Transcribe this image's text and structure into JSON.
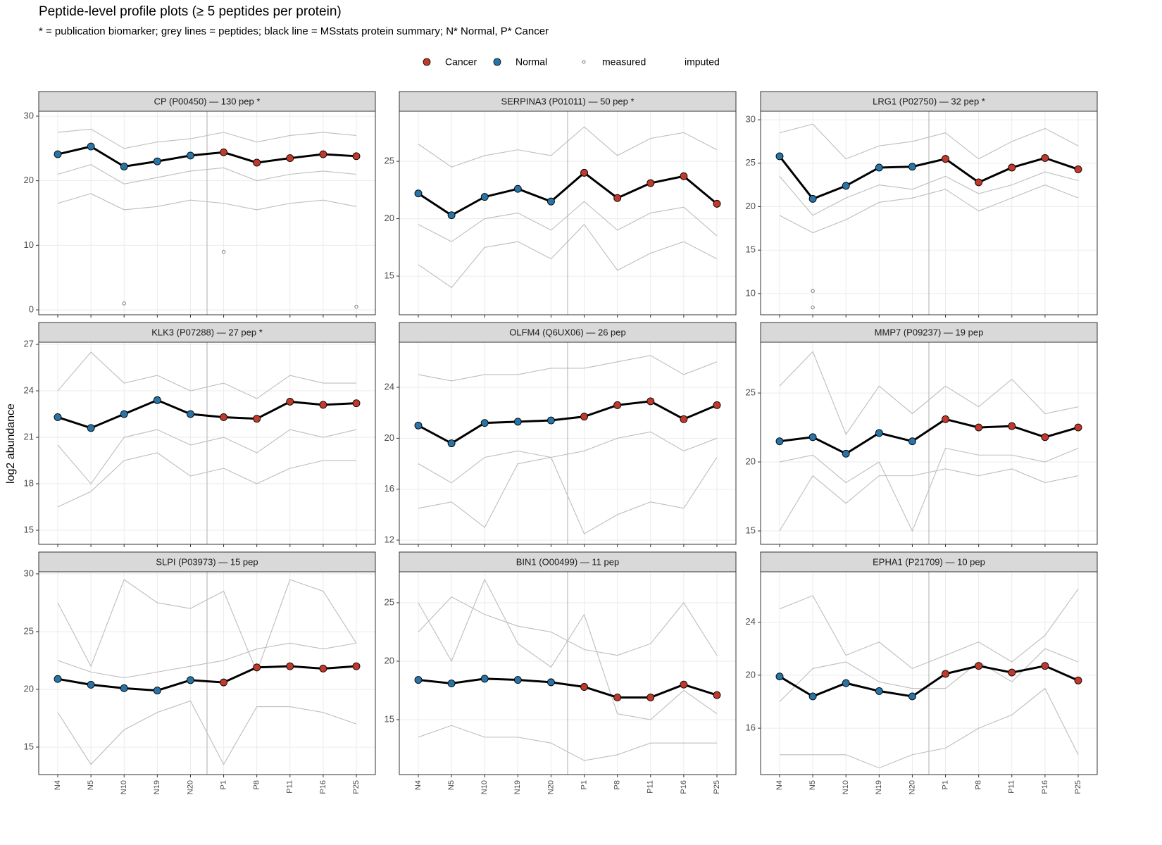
{
  "title": "Peptide-level profile plots (≥ 5 peptides per protein)",
  "subtitle": "* = publication biomarker; grey lines = peptides; black line = MSstats protein summary; N* Normal, P* Cancer",
  "y_label": "log2 abundance",
  "legend": [
    {
      "name": "Cancer",
      "color": "#c0392b"
    },
    {
      "name": "Normal",
      "color": "#2874a6"
    },
    {
      "name": "measured"
    },
    {
      "name": "imputed"
    }
  ],
  "categories": [
    "N4",
    "N5",
    "N10",
    "N19",
    "N20",
    "P1",
    "P8",
    "P11",
    "P16",
    "P25"
  ],
  "groups": [
    "Normal",
    "Normal",
    "Normal",
    "Normal",
    "Normal",
    "Cancer",
    "Cancer",
    "Cancer",
    "Cancer",
    "Cancer"
  ],
  "chart_data": [
    {
      "type": "line",
      "title": "CP (P00450) — 130 pep *",
      "color": "#000000",
      "peptide_color": "#bdbdbd",
      "grid": true,
      "values": [
        24.1,
        25.3,
        22.2,
        23.0,
        23.9,
        24.4,
        22.8,
        23.5,
        24.1,
        23.8
      ],
      "peptides": [
        [
          27.5,
          28.0,
          25.0,
          26.0,
          26.5,
          27.5,
          26.0,
          27.0,
          27.5,
          27.0
        ],
        [
          16.5,
          18.0,
          15.5,
          16.0,
          17.0,
          16.5,
          15.5,
          16.5,
          17.0,
          16.0
        ],
        [
          21.0,
          22.5,
          19.5,
          20.5,
          21.5,
          22.0,
          20.0,
          21.0,
          21.5,
          21.0
        ]
      ],
      "measured": {
        "x": [
          "N10",
          "P1",
          "P25"
        ],
        "values": [
          1.0,
          9.0,
          0.5
        ]
      },
      "ylim": [
        -0.76,
        30.76
      ],
      "yticks": [
        0,
        10,
        20,
        30
      ]
    },
    {
      "type": "line",
      "title": "SERPINA3 (P01011) — 50 pep *",
      "color": "#000000",
      "peptide_color": "#bdbdbd",
      "grid": true,
      "values": [
        22.2,
        20.3,
        21.9,
        22.6,
        21.5,
        24.0,
        21.8,
        23.1,
        23.7,
        21.3
      ],
      "peptides": [
        [
          26.5,
          24.5,
          25.5,
          26.0,
          25.5,
          28.0,
          25.5,
          27.0,
          27.5,
          26.0
        ],
        [
          16.0,
          14.0,
          17.5,
          18.0,
          16.5,
          19.5,
          15.5,
          17.0,
          18.0,
          16.5
        ],
        [
          19.5,
          18.0,
          20.0,
          20.5,
          19.0,
          21.5,
          19.0,
          20.5,
          21.0,
          18.5
        ]
      ],
      "ylim": [
        11.63,
        29.36
      ],
      "yticks": [
        15,
        20,
        25
      ]
    },
    {
      "type": "line",
      "title": "LRG1 (P02750) — 32 pep *",
      "color": "#000000",
      "peptide_color": "#bdbdbd",
      "grid": true,
      "values": [
        25.8,
        20.9,
        22.4,
        24.5,
        24.6,
        25.5,
        22.8,
        24.5,
        25.6,
        24.3
      ],
      "peptides": [
        [
          28.5,
          29.5,
          25.5,
          27.0,
          27.5,
          28.5,
          25.5,
          27.5,
          29.0,
          27.0
        ],
        [
          19.0,
          17.0,
          18.5,
          20.5,
          21.0,
          22.0,
          19.5,
          21.0,
          22.5,
          21.0
        ],
        [
          23.5,
          19.0,
          21.0,
          22.5,
          22.0,
          23.5,
          21.5,
          22.5,
          24.0,
          23.0
        ]
      ],
      "measured": {
        "x": [
          "N5",
          "N5"
        ],
        "values": [
          10.3,
          8.4
        ]
      },
      "ylim": [
        7.56,
        30.98
      ],
      "yticks": [
        10,
        15,
        20,
        25,
        30
      ]
    },
    {
      "type": "line",
      "title": "KLK3 (P07288) — 27 pep *",
      "color": "#000000",
      "peptide_color": "#bdbdbd",
      "grid": true,
      "values": [
        22.3,
        21.6,
        22.5,
        23.4,
        22.5,
        22.3,
        22.2,
        23.3,
        23.1,
        23.2
      ],
      "peptides": [
        [
          24.0,
          26.5,
          24.5,
          25.0,
          24.0,
          24.5,
          23.5,
          25.0,
          24.5,
          24.5
        ],
        [
          16.5,
          17.5,
          19.5,
          20.0,
          18.5,
          19.0,
          18.0,
          19.0,
          19.5,
          19.5
        ],
        [
          20.5,
          18.0,
          21.0,
          21.5,
          20.5,
          21.0,
          20.0,
          21.5,
          21.0,
          21.5
        ]
      ],
      "ylim": [
        14.09,
        27.14
      ],
      "yticks": [
        15,
        18,
        21,
        24,
        27
      ]
    },
    {
      "type": "line",
      "title": "OLFM4 (Q6UX06) — 26 pep",
      "color": "#000000",
      "peptide_color": "#bdbdbd",
      "grid": true,
      "values": [
        21.0,
        19.6,
        21.2,
        21.3,
        21.4,
        21.7,
        22.6,
        22.9,
        21.5,
        22.6
      ],
      "peptides": [
        [
          25.0,
          24.5,
          25.0,
          25.0,
          25.5,
          25.5,
          26.0,
          26.5,
          25.0,
          26.0
        ],
        [
          14.5,
          15.0,
          13.0,
          18.0,
          18.5,
          12.5,
          14.0,
          15.0,
          14.5,
          18.5
        ],
        [
          18.0,
          16.5,
          18.5,
          19.0,
          18.5,
          19.0,
          20.0,
          20.5,
          19.0,
          20.0
        ]
      ],
      "ylim": [
        11.67,
        27.54
      ],
      "yticks": [
        12,
        16,
        20,
        24
      ]
    },
    {
      "type": "line",
      "title": "MMP7 (P09237) — 19 pep",
      "color": "#000000",
      "peptide_color": "#bdbdbd",
      "grid": true,
      "values": [
        21.5,
        21.8,
        20.6,
        22.1,
        21.5,
        23.1,
        22.5,
        22.6,
        21.8,
        22.5
      ],
      "peptides": [
        [
          25.5,
          28.0,
          22.0,
          25.5,
          23.5,
          25.5,
          24.0,
          26.0,
          23.5,
          24.0
        ],
        [
          15.0,
          19.0,
          17.0,
          19.0,
          19.0,
          19.5,
          19.0,
          19.5,
          18.5,
          19.0
        ],
        [
          20.0,
          20.5,
          18.5,
          20.0,
          15.0,
          21.0,
          20.5,
          20.5,
          20.0,
          21.0
        ]
      ],
      "ylim": [
        14.03,
        28.68
      ],
      "yticks": [
        15,
        20,
        25
      ]
    },
    {
      "type": "line",
      "title": "SLPI (P03973) — 15 pep",
      "color": "#000000",
      "peptide_color": "#bdbdbd",
      "grid": true,
      "values": [
        20.9,
        20.4,
        20.1,
        19.9,
        20.8,
        20.6,
        21.9,
        22.0,
        21.8,
        22.0
      ],
      "peptides": [
        [
          27.5,
          22.0,
          29.5,
          27.5,
          27.0,
          28.5,
          21.5,
          29.5,
          28.5,
          24.0
        ],
        [
          18.0,
          13.5,
          16.5,
          18.0,
          19.0,
          13.5,
          18.5,
          18.5,
          18.0,
          17.0
        ],
        [
          22.5,
          21.5,
          21.0,
          21.5,
          22.0,
          22.5,
          23.5,
          24.0,
          23.5,
          24.0
        ]
      ],
      "ylim": [
        12.62,
        30.18
      ],
      "yticks": [
        15,
        20,
        25,
        30
      ]
    },
    {
      "type": "line",
      "title": "BIN1 (O00499) — 11 pep",
      "color": "#000000",
      "peptide_color": "#bdbdbd",
      "grid": true,
      "values": [
        18.4,
        18.1,
        18.5,
        18.4,
        18.2,
        17.8,
        16.9,
        16.9,
        18.0,
        17.1
      ],
      "peptides": [
        [
          25.0,
          20.0,
          27.0,
          21.5,
          19.5,
          24.0,
          15.5,
          15.0,
          17.5,
          15.5
        ],
        [
          22.5,
          25.5,
          24.0,
          23.0,
          22.5,
          21.0,
          20.5,
          21.5,
          25.0,
          20.5
        ],
        [
          13.5,
          14.5,
          13.5,
          13.5,
          13.0,
          11.5,
          12.0,
          13.0,
          13.0,
          13.0
        ]
      ],
      "ylim": [
        10.3,
        27.65
      ],
      "yticks": [
        15,
        20,
        25
      ]
    },
    {
      "type": "line",
      "title": "EPHA1 (P21709) — 10 pep",
      "color": "#000000",
      "peptide_color": "#bdbdbd",
      "grid": true,
      "values": [
        19.9,
        18.4,
        19.4,
        18.8,
        18.4,
        20.1,
        20.7,
        20.2,
        20.7,
        19.6
      ],
      "peptides": [
        [
          25.0,
          26.0,
          21.5,
          22.5,
          20.5,
          21.5,
          22.5,
          21.0,
          23.0,
          26.5
        ],
        [
          14.0,
          14.0,
          14.0,
          13.0,
          14.0,
          14.5,
          16.0,
          17.0,
          19.0,
          14.0
        ],
        [
          18.0,
          20.5,
          21.0,
          19.5,
          19.0,
          19.0,
          21.0,
          19.5,
          22.0,
          21.0
        ]
      ],
      "ylim": [
        12.5,
        27.8
      ],
      "yticks": [
        16,
        20,
        24
      ]
    }
  ]
}
